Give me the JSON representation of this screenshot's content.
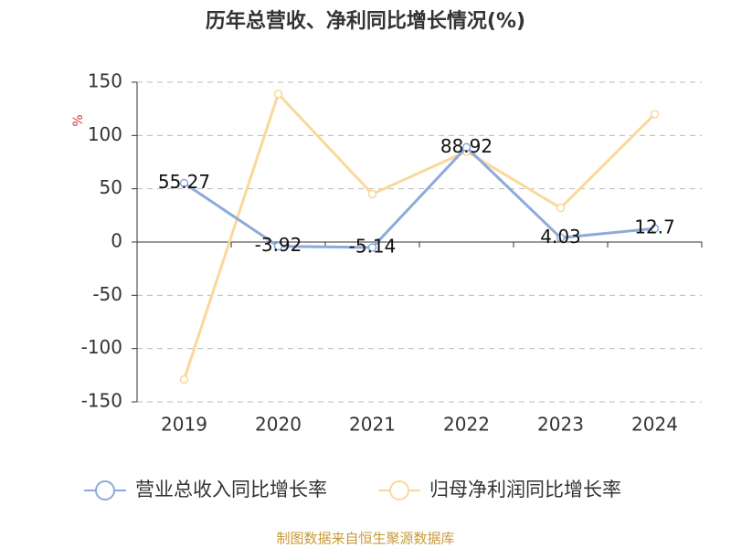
{
  "chart_data": {
    "type": "line",
    "title": "历年总营收、净利同比增长情况(%)",
    "y_label": "%",
    "categories": [
      "2019",
      "2020",
      "2021",
      "2022",
      "2023",
      "2024"
    ],
    "series": [
      {
        "name": "营业总收入同比增长率",
        "color": "#8eaadb",
        "values": [
          55.27,
          -3.92,
          -5.14,
          88.92,
          4.03,
          12.7
        ],
        "data_labels": true
      },
      {
        "name": "归母净利润同比增长率",
        "color": "#fbd89a",
        "values": [
          -129,
          139,
          45,
          85,
          32,
          120
        ],
        "data_labels": false
      }
    ],
    "ylim": [
      -150,
      150
    ],
    "yticks": [
      -150,
      -100,
      -50,
      0,
      50,
      100,
      150
    ],
    "grid": true,
    "source": "制图数据来自恒生聚源数据库"
  }
}
